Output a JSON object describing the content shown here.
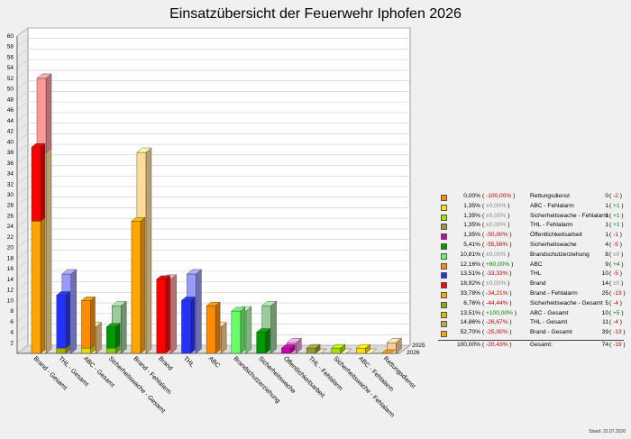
{
  "chart_data": {
    "type": "bar",
    "title": "Einsatzübersicht der Feuerwehr Iphofen 2026",
    "ylim": [
      0,
      60
    ],
    "ytick_step": 2,
    "series_labels": [
      "2025",
      "2026"
    ],
    "categories": [
      "Brand - Gesamt",
      "THL - Gesamt",
      "ABC - Gesamt",
      "Sicherheitswache - Gesamt",
      "Brand - Fehlalarm",
      "Brand",
      "THL",
      "ABC",
      "Brandschutzerziehung",
      "Sicherheitswache",
      "Öffentlichkeitsarbeit",
      "THL - Fehlalarm",
      "Sicherheitswache - Fehlalarm",
      "ABC - Fehlalarm",
      "Rettungsdienst"
    ],
    "bars_2026": [
      {
        "segments": [
          {
            "value": 25,
            "color": "#ffa500"
          },
          {
            "value": 14,
            "color": "#ff0000"
          }
        ]
      },
      {
        "segments": [
          {
            "value": 1,
            "color": "#aaaa00"
          },
          {
            "value": 10,
            "color": "#2233ff"
          }
        ]
      },
      {
        "segments": [
          {
            "value": 1,
            "color": "#dddd00"
          },
          {
            "value": 9,
            "color": "#ff8c00"
          }
        ]
      },
      {
        "segments": [
          {
            "value": 1,
            "color": "#88cc00"
          },
          {
            "value": 4,
            "color": "#009900"
          }
        ]
      },
      {
        "segments": [
          {
            "value": 25,
            "color": "#ffa500"
          }
        ]
      },
      {
        "segments": [
          {
            "value": 14,
            "color": "#ff0000"
          }
        ]
      },
      {
        "segments": [
          {
            "value": 10,
            "color": "#2233ff"
          }
        ]
      },
      {
        "segments": [
          {
            "value": 9,
            "color": "#ff8c00"
          }
        ]
      },
      {
        "segments": [
          {
            "value": 8,
            "color": "#66ff66"
          }
        ]
      },
      {
        "segments": [
          {
            "value": 4,
            "color": "#009900"
          }
        ]
      },
      {
        "segments": [
          {
            "value": 1,
            "color": "#cc00aa"
          }
        ]
      },
      {
        "segments": [
          {
            "value": 1,
            "color": "#999933"
          }
        ]
      },
      {
        "segments": [
          {
            "value": 1,
            "color": "#aadd00"
          }
        ]
      },
      {
        "segments": [
          {
            "value": 1,
            "color": "#ffdd00"
          }
        ]
      },
      {
        "segments": [
          {
            "value": 0,
            "color": "#ff8800"
          }
        ]
      }
    ],
    "bars_2025": [
      {
        "segments": [
          {
            "value": 38,
            "color": "#ffdd99"
          },
          {
            "value": 14,
            "color": "#ff9999"
          }
        ]
      },
      {
        "segments": [
          {
            "value": 0,
            "color": "#cccc88"
          },
          {
            "value": 15,
            "color": "#9999ff"
          }
        ]
      },
      {
        "segments": [
          {
            "value": 0,
            "color": "#eeee99"
          },
          {
            "value": 5,
            "color": "#ffcc88"
          }
        ]
      },
      {
        "segments": [
          {
            "value": 0,
            "color": "#ccee99"
          },
          {
            "value": 9,
            "color": "#99cc99"
          }
        ]
      },
      {
        "segments": [
          {
            "value": 38,
            "color": "#ffdd99"
          }
        ]
      },
      {
        "segments": [
          {
            "value": 14,
            "color": "#ff9999"
          }
        ]
      },
      {
        "segments": [
          {
            "value": 15,
            "color": "#9999ff"
          }
        ]
      },
      {
        "segments": [
          {
            "value": 5,
            "color": "#ffcc88"
          }
        ]
      },
      {
        "segments": [
          {
            "value": 8,
            "color": "#aaffaa"
          }
        ]
      },
      {
        "segments": [
          {
            "value": 9,
            "color": "#99cc99"
          }
        ]
      },
      {
        "segments": [
          {
            "value": 2,
            "color": "#ee99dd"
          }
        ]
      },
      {
        "segments": [
          {
            "value": 0,
            "color": "#cccc99"
          }
        ]
      },
      {
        "segments": [
          {
            "value": 0,
            "color": "#ddee99"
          }
        ]
      },
      {
        "segments": [
          {
            "value": 0,
            "color": "#ffee99"
          }
        ]
      },
      {
        "segments": [
          {
            "value": 2,
            "color": "#ffcc99"
          }
        ]
      }
    ]
  },
  "legend": [
    {
      "pct": "0,00%",
      "change": "-100,00%",
      "name": "Rettungsdienst",
      "count": "0",
      "diff": "-2",
      "color": "#ff8800"
    },
    {
      "pct": "1,35%",
      "change": "±0,00%",
      "name": "ABC - Fehlalarm",
      "count": "1",
      "diff": "+1",
      "color": "#ffdd00"
    },
    {
      "pct": "1,35%",
      "change": "±0,00%",
      "name": "Sicherheitswache - Fehlalarm",
      "count": "1",
      "diff": "+1",
      "color": "#aadd00"
    },
    {
      "pct": "1,35%",
      "change": "±0,00%",
      "name": "THL - Fehlalarm",
      "count": "1",
      "diff": "+1",
      "color": "#999933"
    },
    {
      "pct": "1,35%",
      "change": "-50,00%",
      "name": "Öffentlichkeitsarbeit",
      "count": "1",
      "diff": "-1",
      "color": "#cc00aa"
    },
    {
      "pct": "5,41%",
      "change": "-55,56%",
      "name": "Sicherheitswache",
      "count": "4",
      "diff": "-5",
      "color": "#009900"
    },
    {
      "pct": "10,81%",
      "change": "±0,00%",
      "name": "Brandschutzerziehung",
      "count": "8",
      "diff": "±0",
      "color": "#66ff66"
    },
    {
      "pct": "12,16%",
      "change": "+80,00%",
      "name": "ABC",
      "count": "9",
      "diff": "+4",
      "color": "#ff8c00"
    },
    {
      "pct": "13,51%",
      "change": "-33,33%",
      "name": "THL",
      "count": "10",
      "diff": "-5",
      "color": "#2233ff"
    },
    {
      "pct": "18,92%",
      "change": "±0,00%",
      "name": "Brand",
      "count": "14",
      "diff": "±0",
      "color": "#ff0000"
    },
    {
      "pct": "33,78%",
      "change": "-34,21%",
      "name": "Brand - Fehlalarm",
      "count": "25",
      "diff": "-13",
      "color": "#ffa500"
    },
    {
      "pct": "6,76%",
      "change": "-44,44%",
      "name": "Sicherheitswache - Gesamt",
      "count": "5",
      "diff": "-4",
      "color": "#88aa00"
    },
    {
      "pct": "13,51%",
      "change": "+100,00%",
      "name": "ABC - Gesamt",
      "count": "10",
      "diff": "+5",
      "color": "#ddbb00"
    },
    {
      "pct": "14,86%",
      "change": "-26,67%",
      "name": "THL - Gesamt",
      "count": "11",
      "diff": "-4",
      "color": "#bbaa44"
    },
    {
      "pct": "52,70%",
      "change": "-25,00%",
      "name": "Brand - Gesamt",
      "count": "39",
      "diff": "-13",
      "color": "#ffa500"
    }
  ],
  "total": {
    "pct": "100,00%",
    "change": "-20,43%",
    "name": "Gesamt:",
    "count": "74",
    "diff": "-19"
  },
  "footer": {
    "stand": "Stand: 22.07.2026"
  }
}
